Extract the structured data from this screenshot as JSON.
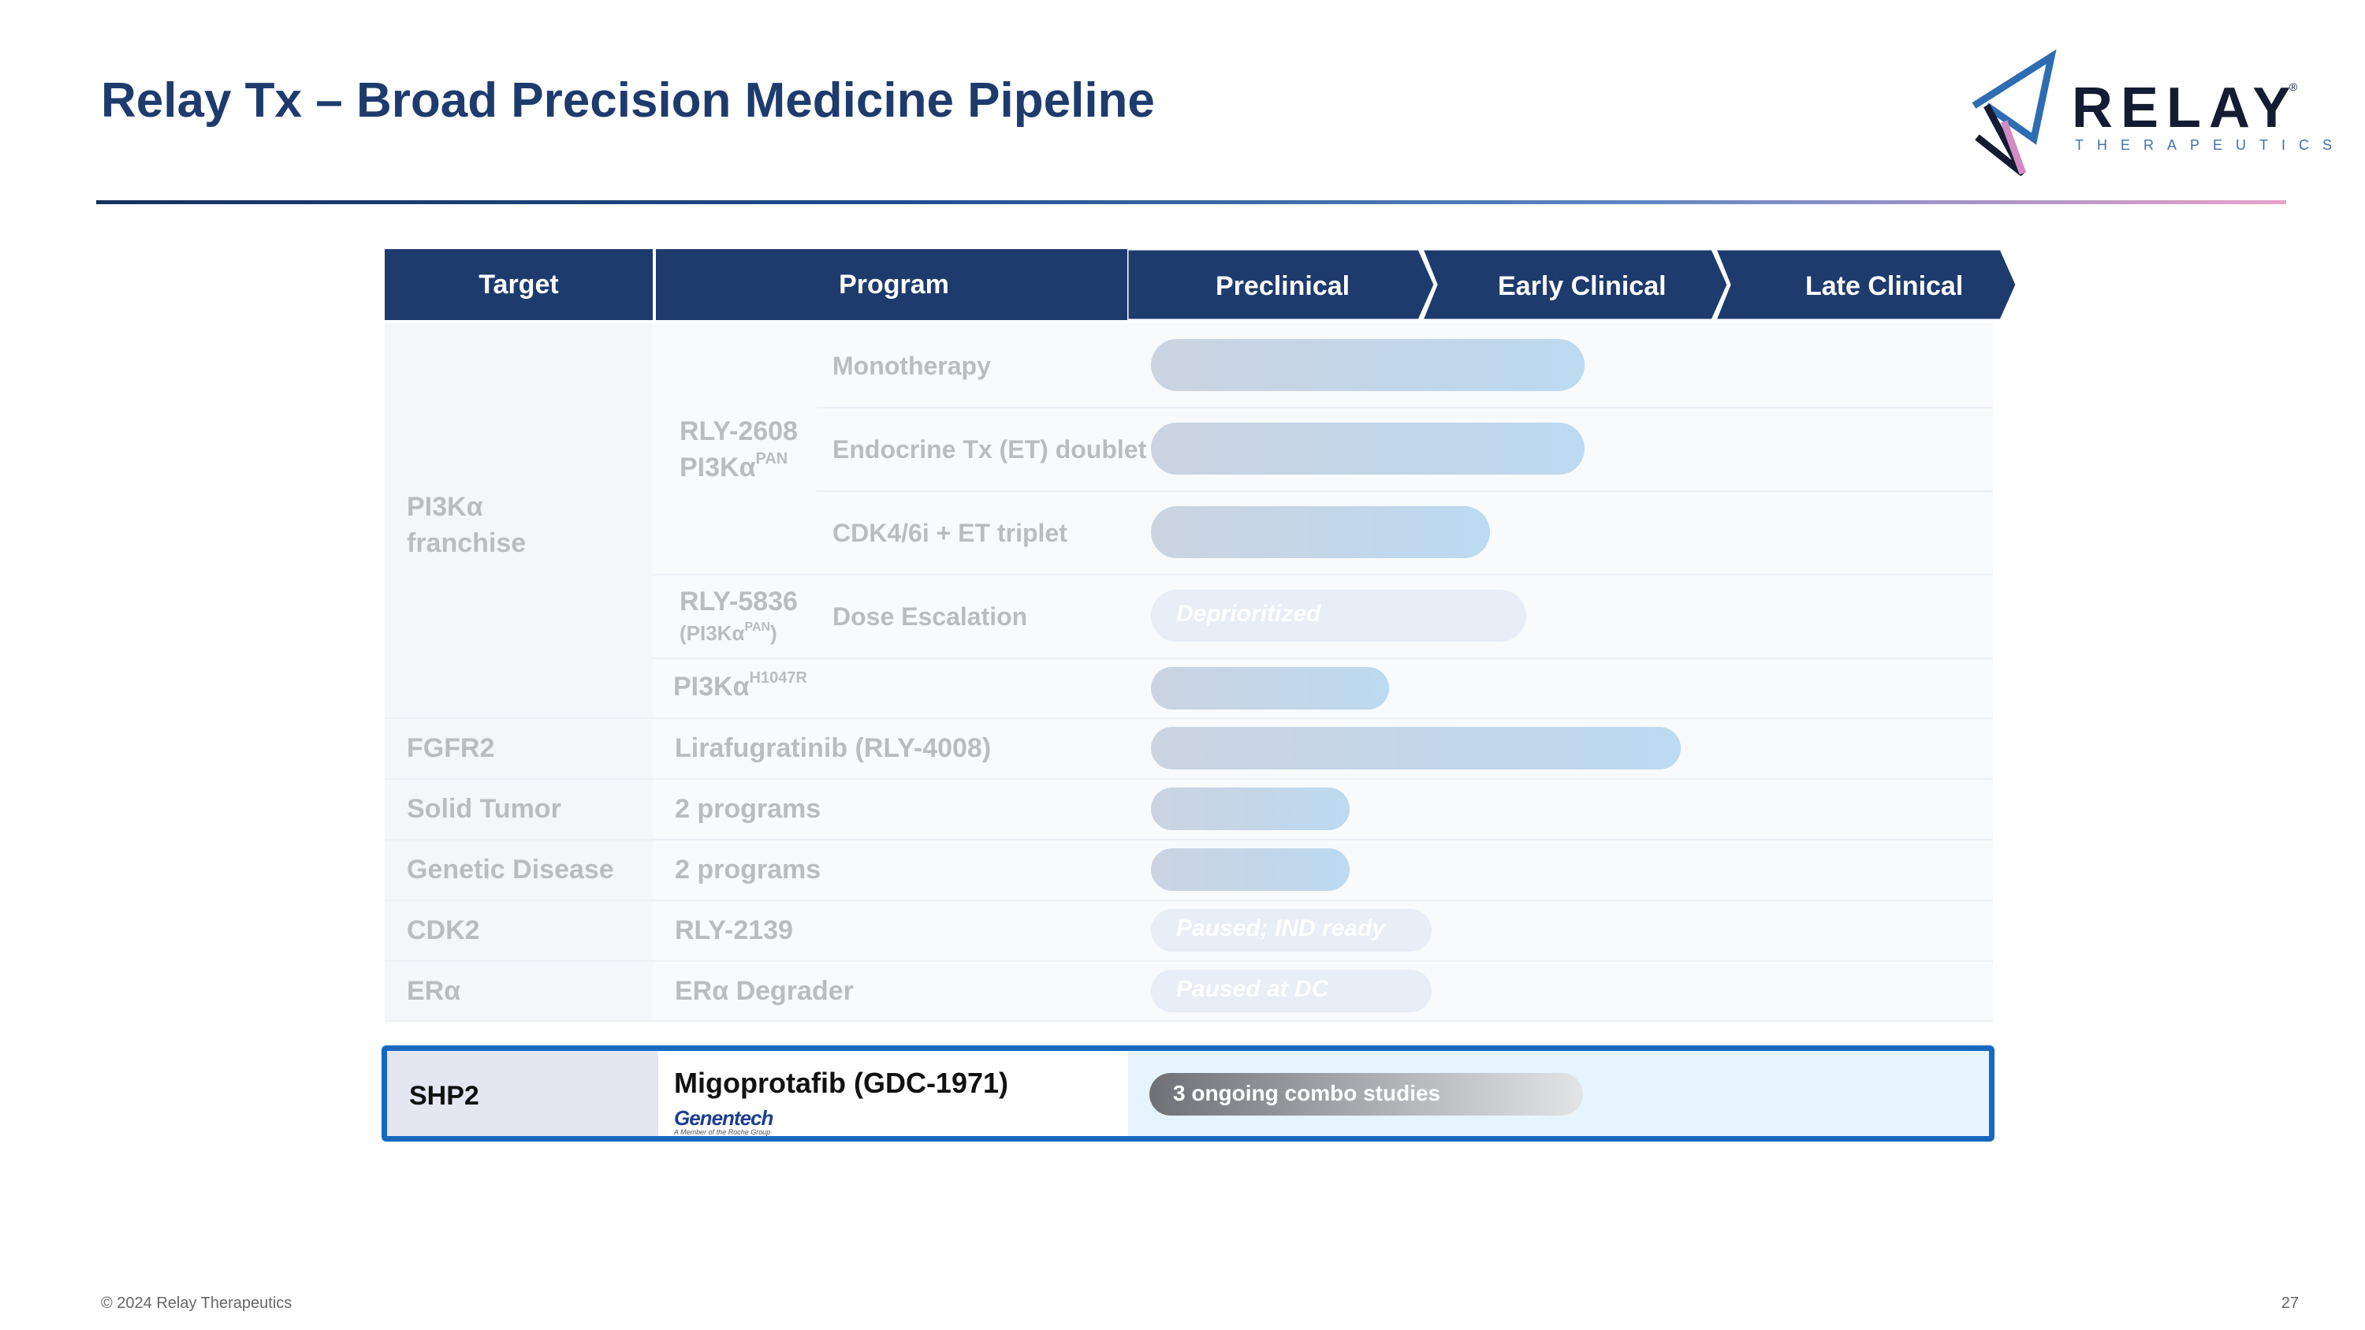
{
  "title": "Relay Tx – Broad Precision Medicine Pipeline",
  "logo": {
    "wordmark": "RELAY",
    "reg": "®",
    "tagline": "THERAPEUTICS"
  },
  "colors": {
    "navy": "#1e3b6e",
    "accent_blue": "#1769c0",
    "faded_text": "#bbbcc0"
  },
  "table_header": {
    "target": "Target",
    "program": "Program",
    "stages": [
      "Preclinical",
      "Early Clinical",
      "Late Clinical"
    ]
  },
  "rows": {
    "pi3k_target": "PI3Kα franchise",
    "rly2608": {
      "name": "RLY-2608",
      "sub_base": "PI3Kα",
      "sub_sup": "PAN"
    },
    "mono": {
      "indication": "Monotherapy",
      "progress": 0.25
    },
    "endocrine": {
      "indication": "Endocrine Tx (ET) doublet",
      "progress": 0.25
    },
    "cdk46": {
      "indication": "CDK4/6i + ET triplet",
      "progress": 0.2
    },
    "rly5836": {
      "name": "RLY-5836",
      "sub_open": "(PI3Kα",
      "sub_sup": "PAN",
      "sub_close": ")",
      "indication": "Dose Escalation",
      "status": "Deprioritized"
    },
    "h1047r": {
      "name_base": "PI3Kα",
      "name_sup": "H1047R",
      "progress": 0.14
    },
    "fgfr2": {
      "target": "FGFR2",
      "program": "Lirafugratinib (RLY-4008)",
      "progress": 0.31
    },
    "solid": {
      "target": "Solid Tumor",
      "program": "2 programs",
      "progress": 0.11
    },
    "genetic": {
      "target": "Genetic Disease",
      "program": "2 programs",
      "progress": 0.11
    },
    "cdk2": {
      "target": "CDK2",
      "program": "RLY-2139",
      "status": "Paused; IND ready"
    },
    "era": {
      "target": "ERα",
      "program": "ERα Degrader",
      "status": "Paused at DC"
    }
  },
  "shp2": {
    "target": "SHP2",
    "program": "Migoprotafib (GDC-1971)",
    "partner": "Genentech",
    "partner_sub": "A Member of the Roche Group",
    "status": "3 ongoing combo studies",
    "progress": 0.25
  },
  "footer": {
    "copyright": "© 2024 Relay Therapeutics",
    "page": "27"
  }
}
